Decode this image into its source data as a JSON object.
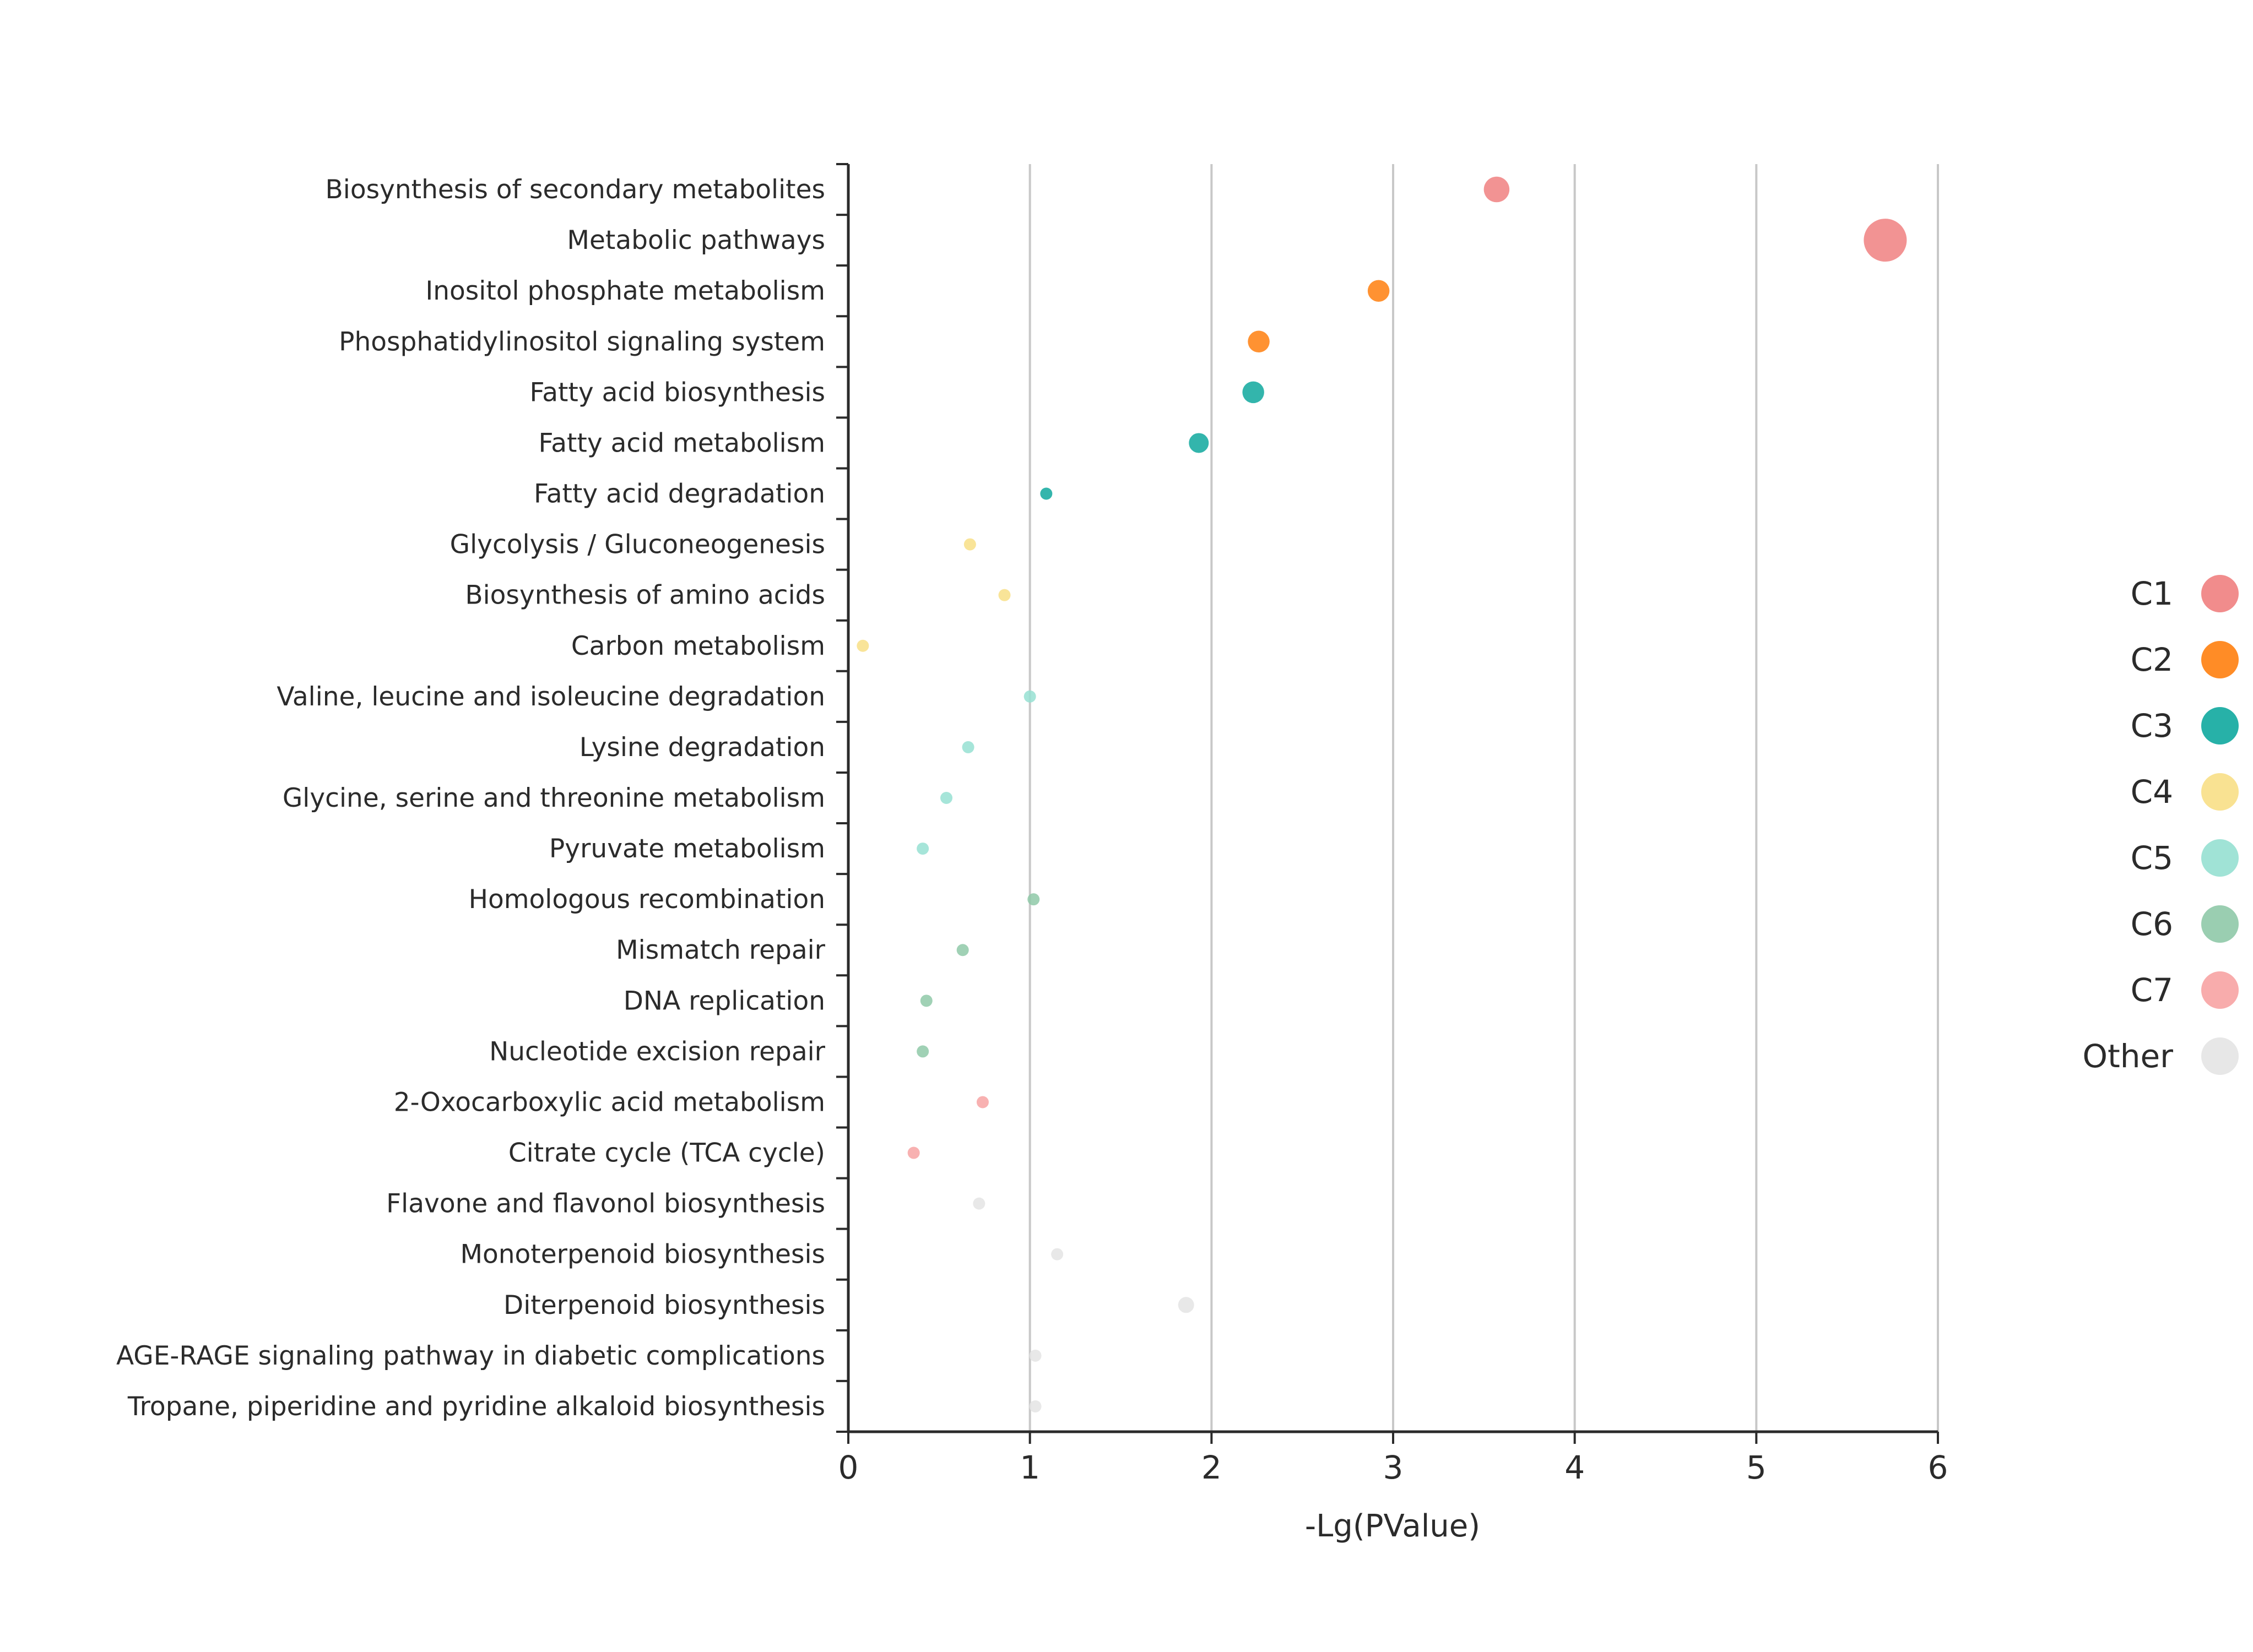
{
  "chart_data": {
    "type": "scatter",
    "title": "",
    "xlabel": "-Lg(PValue)",
    "ylabel": "",
    "xlim": [
      0,
      6
    ],
    "xticks": [
      "0",
      "1",
      "2",
      "3",
      "4",
      "5",
      "6"
    ],
    "grid": "vertical",
    "legend_position": "right",
    "series": [
      {
        "name": "C1",
        "color": "#f08080"
      },
      {
        "name": "C2",
        "color": "#ff7f0e"
      },
      {
        "name": "C3",
        "color": "#0fa89e"
      },
      {
        "name": "C4",
        "color": "#f8df86"
      },
      {
        "name": "C5",
        "color": "#96e0d2"
      },
      {
        "name": "C6",
        "color": "#8fc9a8"
      },
      {
        "name": "C7",
        "color": "#f7a3a3"
      },
      {
        "name": "Other",
        "color": "#e4e4e4"
      }
    ],
    "points": [
      {
        "category": "Biosynthesis of secondary metabolites",
        "x": 3.57,
        "group": "C1",
        "size": 0.55
      },
      {
        "category": "Metabolic pathways",
        "x": 5.71,
        "group": "C1",
        "size": 1.0
      },
      {
        "category": "Inositol phosphate metabolism",
        "x": 2.92,
        "group": "C2",
        "size": 0.45
      },
      {
        "category": "Phosphatidylinositol signaling system",
        "x": 2.26,
        "group": "C2",
        "size": 0.45
      },
      {
        "category": "Fatty acid biosynthesis",
        "x": 2.23,
        "group": "C3",
        "size": 0.45
      },
      {
        "category": "Fatty acid metabolism",
        "x": 1.93,
        "group": "C3",
        "size": 0.4
      },
      {
        "category": "Fatty acid degradation",
        "x": 1.09,
        "group": "C3",
        "size": 0.2
      },
      {
        "category": "Glycolysis / Gluconeogenesis",
        "x": 0.67,
        "group": "C4",
        "size": 0.2
      },
      {
        "category": "Biosynthesis of amino acids",
        "x": 0.86,
        "group": "C4",
        "size": 0.2
      },
      {
        "category": "Carbon metabolism",
        "x": 0.08,
        "group": "C4",
        "size": 0.2
      },
      {
        "category": "Valine, leucine and isoleucine degradation",
        "x": 1.0,
        "group": "C5",
        "size": 0.2
      },
      {
        "category": "Lysine degradation",
        "x": 0.66,
        "group": "C5",
        "size": 0.2
      },
      {
        "category": "Glycine, serine and threonine metabolism",
        "x": 0.54,
        "group": "C5",
        "size": 0.2
      },
      {
        "category": "Pyruvate metabolism",
        "x": 0.41,
        "group": "C5",
        "size": 0.2
      },
      {
        "category": "Homologous recombination",
        "x": 1.02,
        "group": "C6",
        "size": 0.2
      },
      {
        "category": "Mismatch repair",
        "x": 0.63,
        "group": "C6",
        "size": 0.2
      },
      {
        "category": "DNA replication",
        "x": 0.43,
        "group": "C6",
        "size": 0.2
      },
      {
        "category": "Nucleotide excision repair",
        "x": 0.41,
        "group": "C6",
        "size": 0.2
      },
      {
        "category": "2-Oxocarboxylic acid metabolism",
        "x": 0.74,
        "group": "C7",
        "size": 0.2
      },
      {
        "category": "Citrate cycle (TCA cycle)",
        "x": 0.36,
        "group": "C7",
        "size": 0.2
      },
      {
        "category": "Flavone and flavonol biosynthesis",
        "x": 0.72,
        "group": "Other",
        "size": 0.2
      },
      {
        "category": "Monoterpenoid biosynthesis",
        "x": 1.15,
        "group": "Other",
        "size": 0.2
      },
      {
        "category": "Diterpenoid biosynthesis",
        "x": 1.86,
        "group": "Other",
        "size": 0.3
      },
      {
        "category": "AGE-RAGE signaling pathway in diabetic complications",
        "x": 1.03,
        "group": "Other",
        "size": 0.2
      },
      {
        "category": "Tropane, piperidine and pyridine alkaloid biosynthesis",
        "x": 1.03,
        "group": "Other",
        "size": 0.2
      }
    ]
  }
}
